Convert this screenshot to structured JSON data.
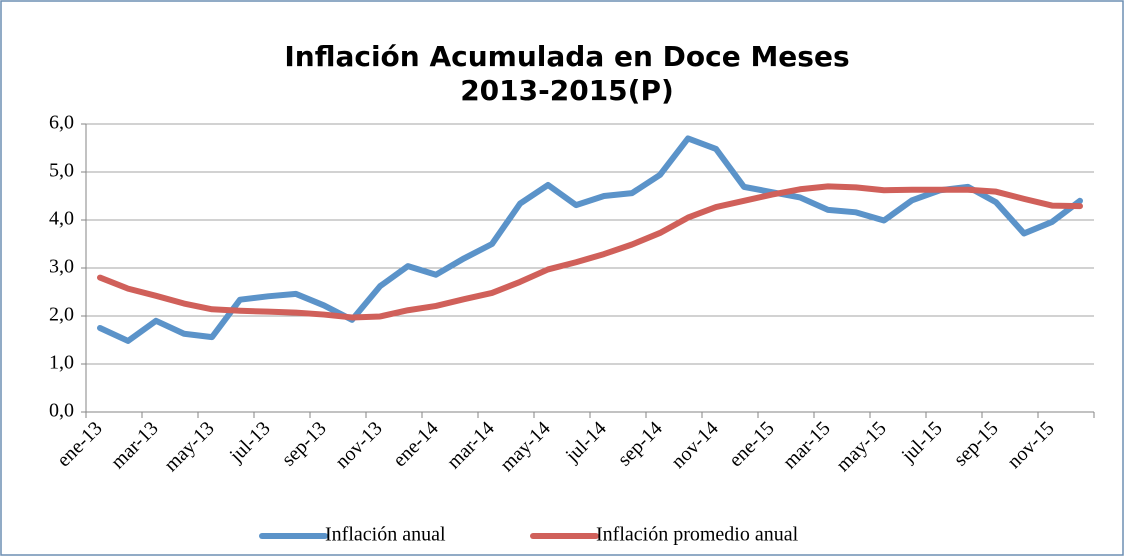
{
  "chart_data": {
    "type": "line",
    "title_lines": [
      "Inflación Acumulada en Doce Meses",
      "2013-2015(P)"
    ],
    "categories": [
      "ene-13",
      null,
      "mar-13",
      null,
      "may-13",
      null,
      "jul-13",
      null,
      "sep-13",
      null,
      "nov-13",
      null,
      "ene-14",
      null,
      "mar-14",
      null,
      "may-14",
      null,
      "jul-14",
      null,
      "sep-14",
      null,
      "nov-14",
      null,
      "ene-15",
      null,
      "mar-15",
      null,
      "may-15",
      null,
      "jul-15",
      null,
      "sep-15",
      null,
      "nov-15",
      null
    ],
    "series": [
      {
        "name": "Inflación anual",
        "color": "#5b93c9",
        "values": [
          1.75,
          1.48,
          1.9,
          1.63,
          1.56,
          2.34,
          2.41,
          2.46,
          2.22,
          1.92,
          2.62,
          3.04,
          2.86,
          3.2,
          3.5,
          4.34,
          4.73,
          4.31,
          4.5,
          4.56,
          4.94,
          5.7,
          5.48,
          4.69,
          4.58,
          4.47,
          4.21,
          4.16,
          3.99,
          4.41,
          4.62,
          4.69,
          4.37,
          3.72,
          3.96,
          4.4
        ]
      },
      {
        "name": "Inflación promedio anual",
        "color": "#d0605a",
        "values": [
          2.8,
          2.57,
          2.42,
          2.26,
          2.14,
          2.11,
          2.09,
          2.07,
          2.03,
          1.97,
          1.99,
          2.12,
          2.21,
          2.35,
          2.48,
          2.71,
          2.97,
          3.12,
          3.29,
          3.49,
          3.73,
          4.05,
          4.27,
          4.4,
          4.53,
          4.64,
          4.7,
          4.68,
          4.62,
          4.63,
          4.63,
          4.63,
          4.59,
          4.44,
          4.3,
          4.29
        ]
      }
    ],
    "ylim": [
      0,
      6
    ],
    "yticks": [
      {
        "value": 0,
        "label": "0,0"
      },
      {
        "value": 1,
        "label": "1,0"
      },
      {
        "value": 2,
        "label": "2,0"
      },
      {
        "value": 3,
        "label": "3,0"
      },
      {
        "value": 4,
        "label": "4,0"
      },
      {
        "value": 5,
        "label": "5,0"
      },
      {
        "value": 6,
        "label": "6,0"
      }
    ],
    "grid": true,
    "legend": "bottom"
  }
}
